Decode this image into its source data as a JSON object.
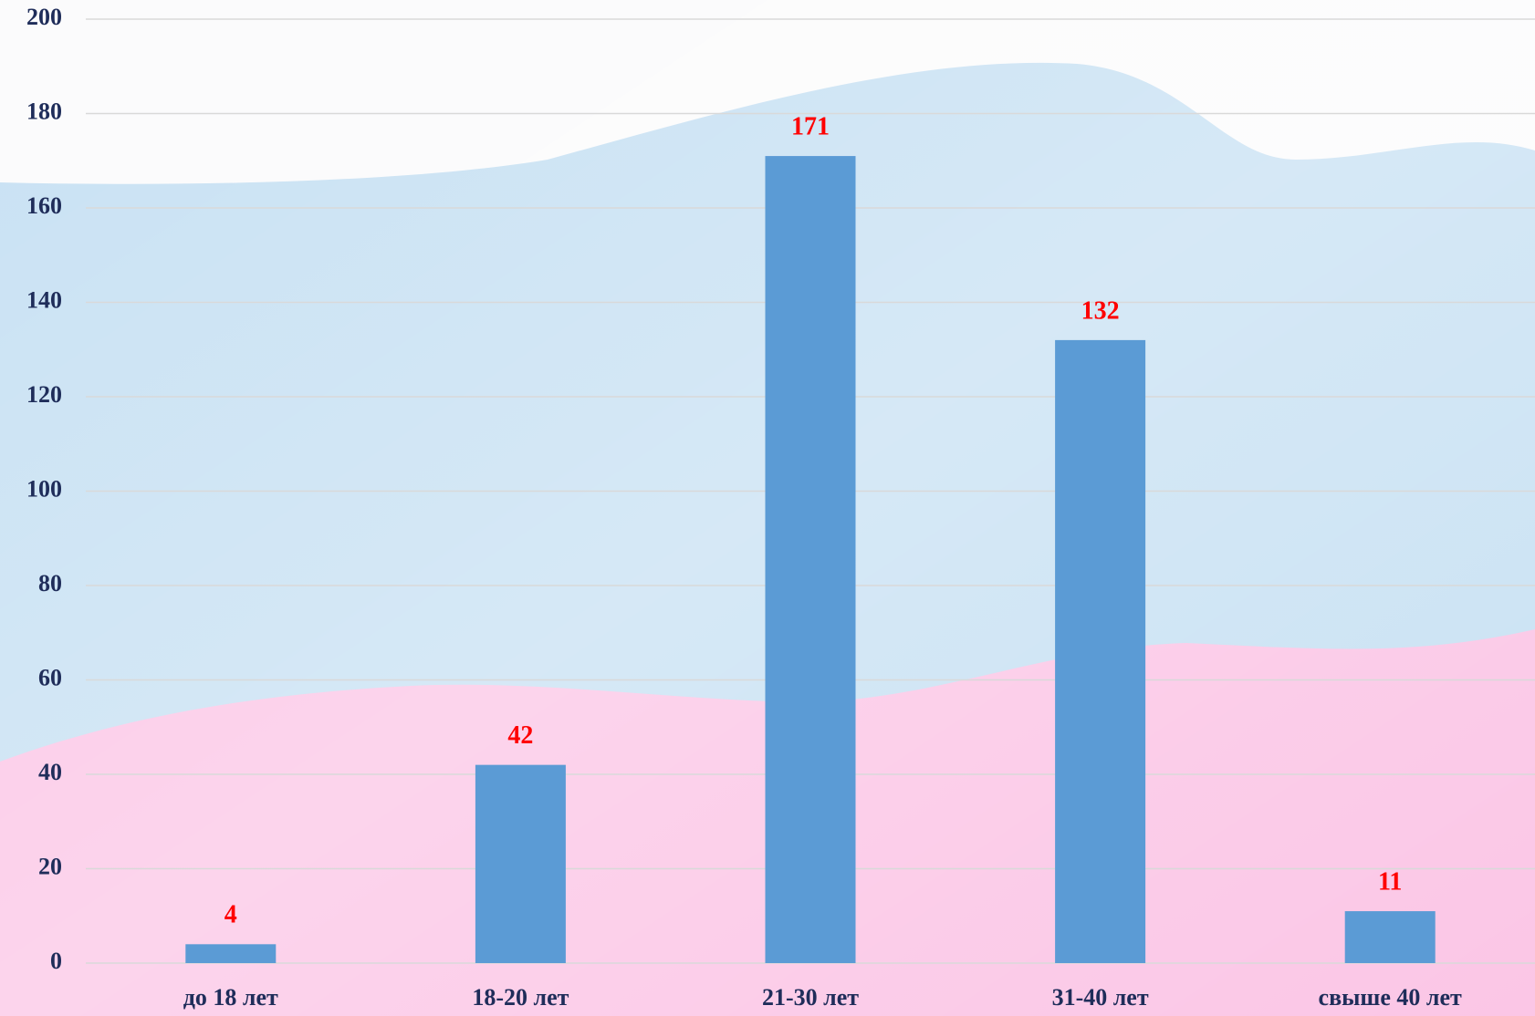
{
  "chart_data": {
    "type": "bar",
    "categories": [
      "до 18 лет",
      "18-20 лет",
      "21-30 лет",
      "31-40 лет",
      "свыше 40 лет"
    ],
    "values": [
      4,
      42,
      171,
      132,
      11
    ],
    "color": "#5b9bd5",
    "label_color": "#ff0000",
    "ylim": [
      0,
      200
    ],
    "yticks": [
      0,
      20,
      40,
      60,
      80,
      100,
      120,
      140,
      160,
      180,
      200
    ],
    "grid": true
  }
}
